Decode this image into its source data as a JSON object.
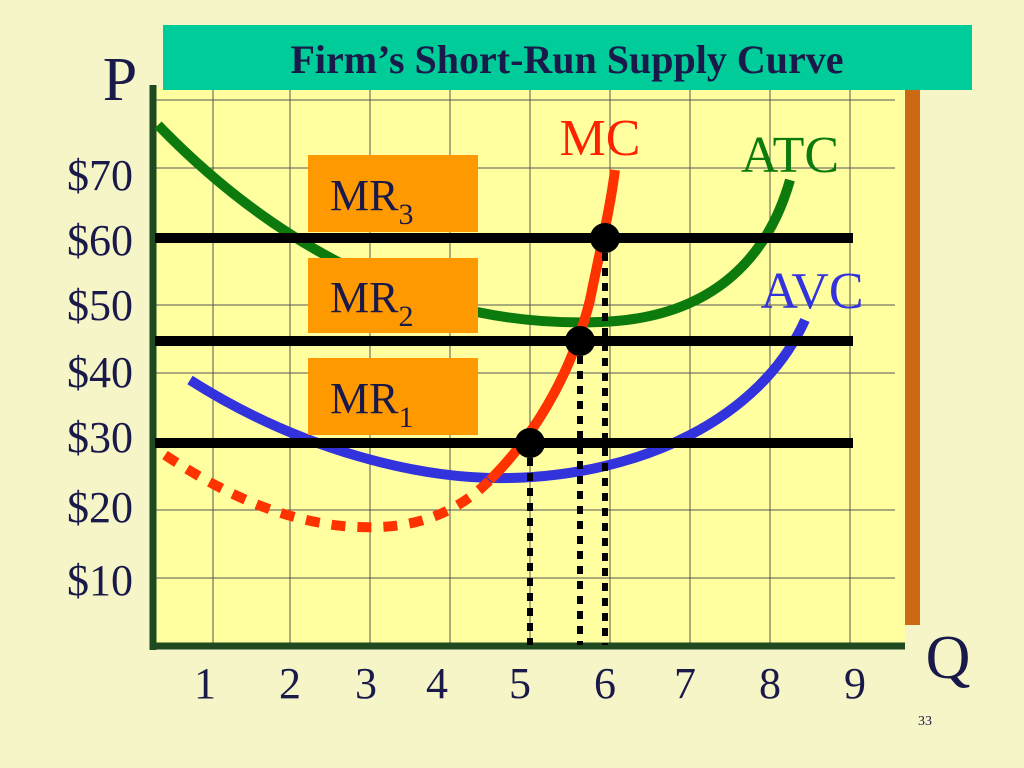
{
  "header": {
    "title": "Firm’s Short-Run Supply Curve"
  },
  "axes": {
    "y_title": "P",
    "x_title": "Q",
    "y_labels": [
      "$70",
      "$60",
      "$50",
      "$40",
      "$30",
      "$20",
      "$10"
    ],
    "x_labels": [
      "1",
      "2",
      "3",
      "4",
      "5",
      "6",
      "7",
      "8",
      "9"
    ]
  },
  "curves": {
    "mc": "MC",
    "atc": "ATC",
    "avc": "AVC"
  },
  "revenue_lines": [
    {
      "text": "MR",
      "subscript": "3"
    },
    {
      "text": "MR",
      "subscript": "2"
    },
    {
      "text": "MR",
      "subscript": "1"
    }
  ],
  "footer": {
    "page_number": "33"
  }
}
